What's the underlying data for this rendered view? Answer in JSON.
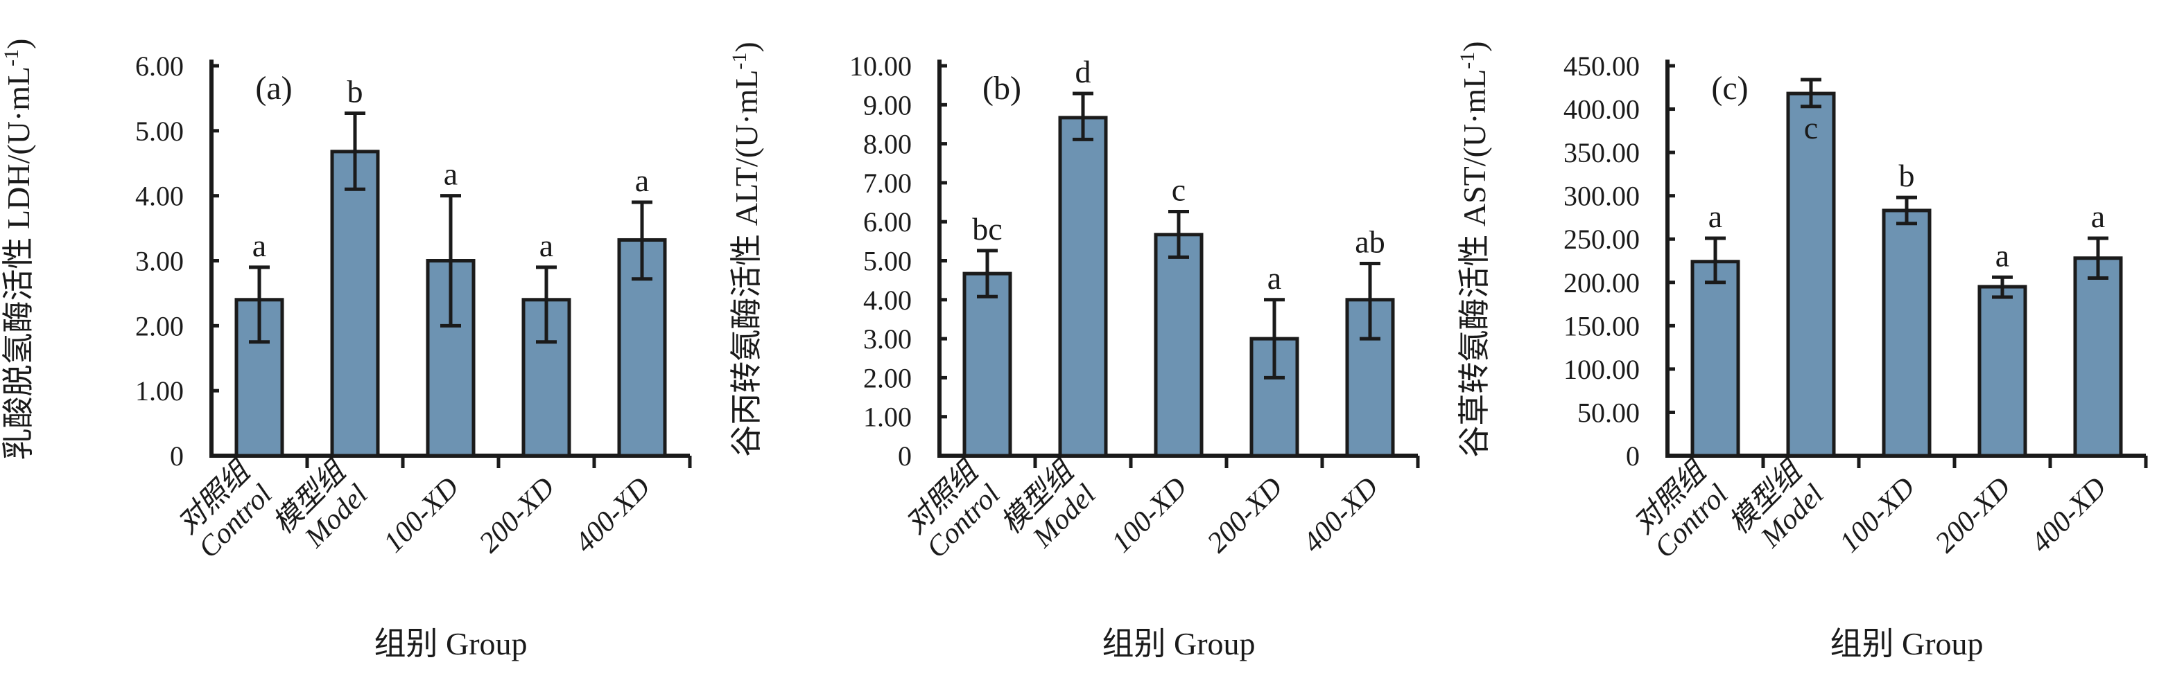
{
  "figure": {
    "background": "#ffffff",
    "bar_fill": "#6D93B2",
    "bar_stroke": "#1b1b1b",
    "axis_color": "#1a1a1a",
    "text_color": "#1a1a1a"
  },
  "chart_data": [
    {
      "type": "bar",
      "panel_label": "(a)",
      "y_title_main": "乳酸脱氢酶活性 LDH/(U·mL",
      "y_title_sup": "-1",
      "y_title_end": ")",
      "x_title": "组别 Group",
      "ylim": [
        0,
        6
      ],
      "ytick_step": 1,
      "ytick_labels": [
        "0",
        "1.00",
        "2.00",
        "3.00",
        "4.00",
        "5.00",
        "6.00"
      ],
      "categories": [
        [
          "对照组",
          "Control"
        ],
        [
          "模型组",
          "Model"
        ],
        [
          "100-XD"
        ],
        [
          "200-XD"
        ],
        [
          "400-XD"
        ]
      ],
      "values": [
        2.4,
        4.68,
        3.0,
        2.4,
        3.32
      ],
      "error_low": [
        1.75,
        4.1,
        2.0,
        1.75,
        2.72
      ],
      "error_high": [
        2.9,
        5.27,
        4.0,
        2.9,
        3.9
      ],
      "sig_letters": [
        "a",
        "b",
        "a",
        "a",
        "a"
      ],
      "letter_inside": [
        false,
        false,
        false,
        false,
        false
      ],
      "grid": false,
      "legend": null
    },
    {
      "type": "bar",
      "panel_label": "(b)",
      "y_title_main": "谷丙转氨酶活性 ALT/(U·mL",
      "y_title_sup": "-1",
      "y_title_end": ")",
      "x_title": "组别 Group",
      "ylim": [
        0,
        10
      ],
      "ytick_step": 1,
      "ytick_labels": [
        "0",
        "1.00",
        "2.00",
        "3.00",
        "4.00",
        "5.00",
        "6.00",
        "7.00",
        "8.00",
        "9.00",
        "10.00"
      ],
      "categories": [
        [
          "对照组",
          "Control"
        ],
        [
          "模型组",
          "Model"
        ],
        [
          "100-XD"
        ],
        [
          "200-XD"
        ],
        [
          "400-XD"
        ]
      ],
      "values": [
        4.67,
        8.67,
        5.67,
        3.0,
        4.0
      ],
      "error_low": [
        4.08,
        8.11,
        5.09,
        2.0,
        3.0
      ],
      "error_high": [
        5.26,
        9.29,
        6.26,
        4.0,
        4.93
      ],
      "sig_letters": [
        "bc",
        "d",
        "c",
        "a",
        "ab"
      ],
      "letter_inside": [
        false,
        false,
        false,
        false,
        false
      ],
      "grid": false,
      "legend": null
    },
    {
      "type": "bar",
      "panel_label": "(c)",
      "y_title_main": "谷草转氨酶活性 AST/(U·mL",
      "y_title_sup": "-1",
      "y_title_end": ")",
      "x_title": "组别 Group",
      "ylim": [
        0,
        450
      ],
      "ytick_step": 50,
      "ytick_labels": [
        "0",
        "50.00",
        "100.00",
        "150.00",
        "200.00",
        "250.00",
        "300.00",
        "350.00",
        "400.00",
        "450.00"
      ],
      "categories": [
        [
          "对照组",
          "Control"
        ],
        [
          "模型组",
          "Model"
        ],
        [
          "100-XD"
        ],
        [
          "200-XD"
        ],
        [
          "400-XD"
        ]
      ],
      "values": [
        224,
        418,
        283,
        195,
        228
      ],
      "error_low": [
        200,
        403,
        268,
        183,
        205
      ],
      "error_high": [
        251,
        434,
        298,
        206,
        251
      ],
      "sig_letters": [
        "a",
        "c",
        "b",
        "a",
        "a"
      ],
      "letter_inside": [
        false,
        true,
        false,
        false,
        false
      ],
      "grid": false,
      "legend": null
    }
  ]
}
